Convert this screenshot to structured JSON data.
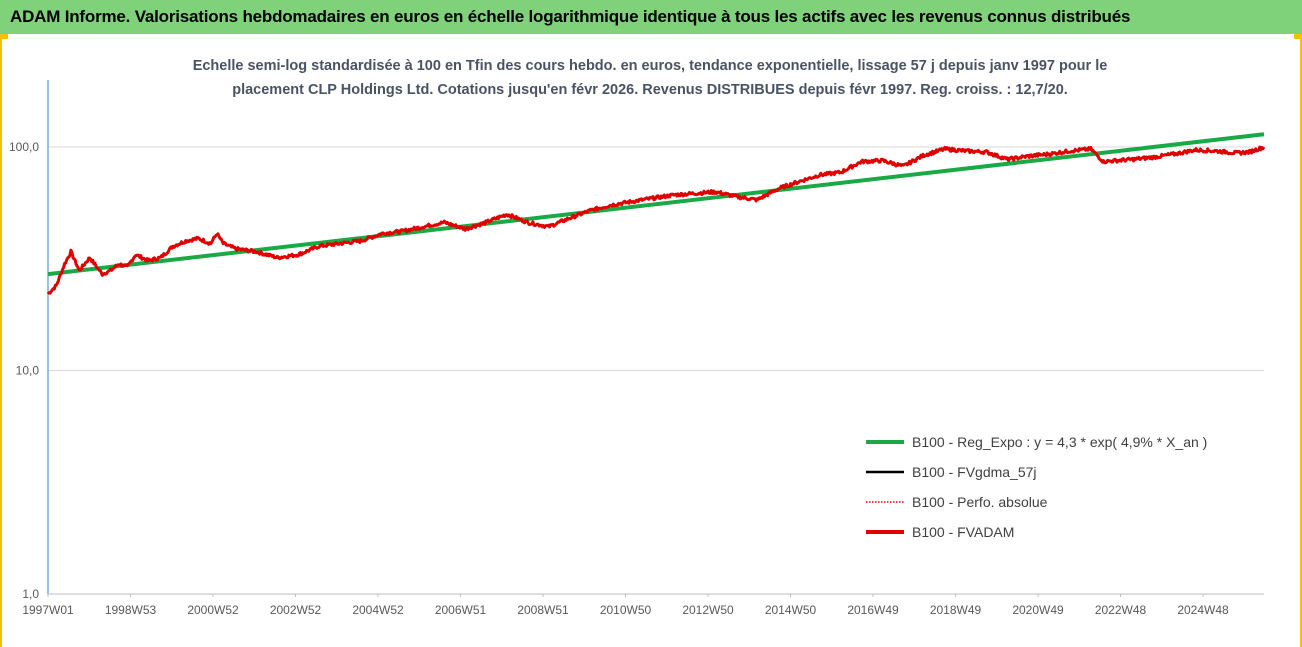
{
  "header": {
    "title": "ADAM Informe. Valorisations hebdomadaires en euros en échelle logarithmique identique à tous les actifs avec les revenus connus distribués"
  },
  "colors": {
    "header_bg": "#7fd27a",
    "frame_accent": "#f2c200",
    "regression": "#1aaa45",
    "fvadam": "#e00000",
    "fvgdma": "#000000",
    "perfo": "#e00000",
    "axis": "#5b9bd5"
  },
  "chart_data": {
    "type": "line",
    "subtitle_lines": [
      "Echelle semi-log standardisée à 100 en Tfin des cours hebdo. en euros, tendance exponentielle, lissage 57 j depuis janv 1997 pour le",
      "placement CLP Holdings Ltd. Cotations jusqu'en févr 2026.  Revenus DISTRIBUES depuis févr 1997.  Reg. croiss. : 12,7/20."
    ],
    "y_scale": "log",
    "ylim": [
      1,
      100
    ],
    "y_ticks": [
      "1,0",
      "10,0",
      "100,0"
    ],
    "xlim": [
      1997.0,
      2026.15
    ],
    "x_tick_labels": [
      "1997W01",
      "1998W53",
      "2000W52",
      "2002W52",
      "2004W52",
      "2006W51",
      "2008W51",
      "2010W50",
      "2012W50",
      "2014W50",
      "2016W49",
      "2018W49",
      "2020W49",
      "2022W48",
      "2024W48"
    ],
    "legend_position": "lower-right",
    "series": [
      {
        "name": "B100 - Reg_Expo : y = 4,3 * exp( 4,9% *  X_an )",
        "style": "solid-thick",
        "color": "#1aaa45",
        "x": [
          1997.0,
          2026.15
        ],
        "y": [
          27,
          114
        ]
      },
      {
        "name": "B100 - FVgdma_57j",
        "style": "solid",
        "color": "#000000"
      },
      {
        "name": "B100 - Perfo. absolue",
        "style": "dotted",
        "color": "#e00000"
      },
      {
        "name": "B100 - FVADAM",
        "style": "solid-thick",
        "color": "#e00000",
        "x": [
          1997.0,
          1997.2,
          1997.4,
          1997.55,
          1997.75,
          1998.0,
          1998.3,
          1998.5,
          1998.7,
          1998.9,
          1999.1,
          1999.4,
          1999.7,
          2000.0,
          2000.3,
          2000.6,
          2000.9,
          2001.05,
          2001.2,
          2001.5,
          2002.0,
          2002.5,
          2003.0,
          2003.5,
          2004.0,
          2004.5,
          2005.0,
          2005.5,
          2006.0,
          2006.5,
          2007.0,
          2007.5,
          2008.0,
          2008.5,
          2009.0,
          2009.5,
          2010.0,
          2010.5,
          2011.0,
          2011.5,
          2012.0,
          2012.5,
          2013.0,
          2013.5,
          2014.0,
          2014.5,
          2015.0,
          2015.5,
          2016.0,
          2016.5,
          2017.0,
          2017.5,
          2018.0,
          2018.5,
          2019.0,
          2019.5,
          2020.0,
          2020.5,
          2021.0,
          2021.5,
          2022.0,
          2022.3,
          2022.6,
          2023.0,
          2023.5,
          2024.0,
          2024.5,
          2025.0,
          2025.5,
          2025.8,
          2026.15
        ],
        "y": [
          22,
          24,
          30,
          34,
          28,
          32,
          27,
          28,
          30,
          29,
          33,
          31,
          32,
          36,
          38,
          39,
          37,
          41,
          37,
          35,
          34,
          32,
          33,
          36,
          37,
          38,
          41,
          42,
          44,
          46,
          43,
          46,
          50,
          46,
          44,
          48,
          52,
          55,
          57,
          59,
          61,
          62,
          63,
          60,
          58,
          65,
          70,
          75,
          77,
          86,
          87,
          82,
          92,
          98,
          96,
          95,
          88,
          91,
          93,
          96,
          98,
          86,
          87,
          88,
          90,
          93,
          97,
          96,
          94,
          95,
          100
        ]
      }
    ]
  }
}
